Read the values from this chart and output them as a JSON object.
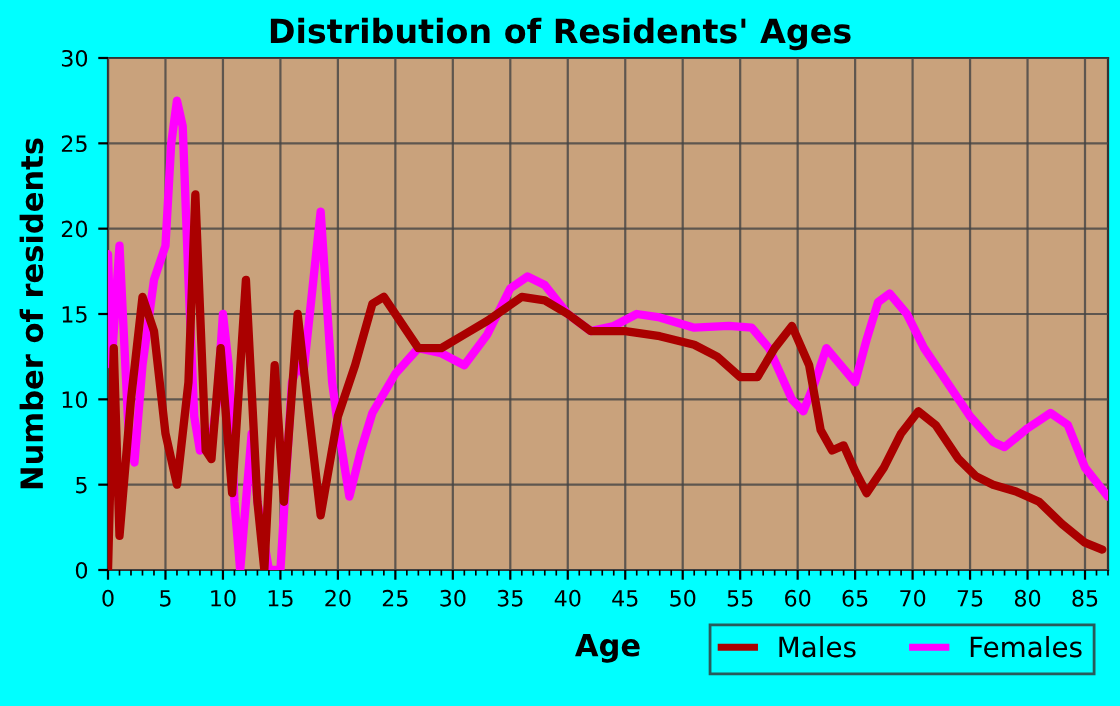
{
  "chart_data": {
    "type": "line",
    "title": "Distribution of Residents' Ages",
    "xlabel": "Age",
    "ylabel": "Number of residents",
    "xlim": [
      0,
      87
    ],
    "xticks": [
      0,
      5,
      10,
      15,
      20,
      25,
      30,
      35,
      40,
      45,
      50,
      55,
      60,
      65,
      70,
      75,
      80,
      85
    ],
    "ylim": [
      0,
      30
    ],
    "yticks": [
      0,
      5,
      10,
      15,
      20,
      25,
      30
    ],
    "grid": true,
    "legend": "bottom right",
    "marker": "none",
    "line_style": "solid",
    "series": [
      {
        "name": "Males",
        "color": "#aa0000",
        "x": [
          0,
          0.5,
          1,
          2,
          3,
          4,
          5,
          6,
          7,
          7.6,
          8.5,
          9,
          9.8,
          10.8,
          12,
          13,
          13.6,
          14.5,
          15.3,
          16.5,
          17.5,
          18.5,
          20,
          21.5,
          23,
          24,
          26,
          27,
          29,
          31,
          33,
          36,
          38,
          40,
          42,
          45,
          48,
          51,
          53,
          55,
          56.5,
          58,
          59.5,
          61,
          62,
          63,
          64,
          65,
          66,
          67.5,
          69,
          70.5,
          72,
          74,
          75.5,
          77,
          79,
          81,
          83,
          85,
          86.5
        ],
        "values": [
          0,
          13,
          2,
          10,
          16,
          14,
          8,
          5,
          11,
          22,
          7,
          6.5,
          13,
          4.5,
          17,
          4,
          0,
          12,
          4,
          15,
          9,
          3.2,
          9,
          12,
          15.6,
          16,
          14,
          13,
          13,
          13.8,
          14.6,
          16,
          15.8,
          15,
          14,
          14,
          13.7,
          13.2,
          12.5,
          11.3,
          11.3,
          13,
          14.3,
          12,
          8.2,
          7,
          7.3,
          5.8,
          4.5,
          6,
          8,
          9.3,
          8.5,
          6.5,
          5.5,
          5,
          4.6,
          4,
          2.7,
          1.6,
          1.2
        ]
      },
      {
        "name": "Females",
        "color": "#ff00ff",
        "x": [
          0,
          0.3,
          1,
          1.8,
          2.3,
          3,
          4,
          5,
          5.5,
          6,
          6.5,
          7,
          7.5,
          8,
          8.5,
          9,
          9.5,
          10,
          10.5,
          11,
          11.5,
          12.5,
          13,
          14,
          15,
          16,
          16.5,
          17,
          18.5,
          19.5,
          20,
          21,
          22,
          23,
          25,
          27,
          29,
          31,
          33,
          35,
          36.5,
          38,
          40,
          42,
          44,
          46,
          48,
          51,
          54,
          56,
          57.5,
          59.5,
          60.5,
          61.5,
          62.5,
          64,
          65,
          66,
          67,
          68,
          69.5,
          71,
          73,
          75,
          77,
          78,
          80,
          82,
          83.5,
          85,
          87
        ],
        "values": [
          18.5,
          12,
          19,
          8,
          6.3,
          12,
          17,
          19,
          25,
          27.5,
          26,
          17,
          9,
          7,
          8,
          7.5,
          10,
          15,
          12,
          4,
          0,
          8,
          4,
          0,
          0,
          11,
          12,
          11.5,
          21,
          11,
          8.5,
          4.3,
          7,
          9.2,
          11.5,
          13,
          12.7,
          12,
          13.8,
          16.5,
          17.2,
          16.7,
          15,
          14,
          14.3,
          15,
          14.8,
          14.2,
          14.3,
          14.2,
          13,
          10,
          9.3,
          11,
          13,
          11.8,
          11,
          13.5,
          15.7,
          16.2,
          15,
          13,
          11,
          9,
          7.5,
          7.2,
          8.3,
          9.2,
          8.5,
          6,
          4.3
        ]
      }
    ]
  }
}
